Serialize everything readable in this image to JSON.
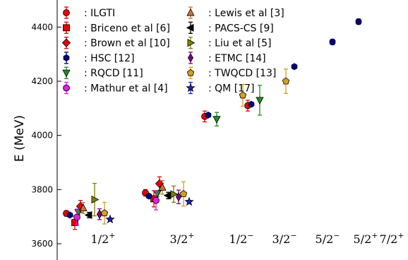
{
  "chart_data": {
    "type": "scatter",
    "ylabel": "E (MeV)",
    "ylim": [
      3540,
      4500
    ],
    "yticks": [
      3600,
      3800,
      4000,
      4200,
      4400
    ],
    "categories": [
      {
        "label": "1/2",
        "sup": "+"
      },
      {
        "label": "3/2",
        "sup": "+"
      },
      {
        "label": "1/2",
        "sup": "−"
      },
      {
        "label": "3/2",
        "sup": "−"
      },
      {
        "label": "5/2",
        "sup": "−"
      },
      {
        "label": "5/2",
        "sup": "+"
      },
      {
        "label": "7/2",
        "sup": "+"
      }
    ],
    "legend_position": "top-left",
    "series": [
      {
        "name": ": ILGTI",
        "marker": "circle",
        "color": "#e8000b",
        "errcolor": "#e8000b",
        "points": [
          {
            "x": 1,
            "y": 3712,
            "err": 10
          },
          {
            "x": 2,
            "y": 3788,
            "err": 12
          },
          {
            "x": 3,
            "y": 4070,
            "err": 20
          },
          {
            "x": 4,
            "y": 4110,
            "err": 20
          }
        ]
      },
      {
        "name": ": Briceno et al [6]",
        "marker": "square",
        "color": "#e8000b",
        "errcolor": "#e8000b",
        "points": [
          {
            "x": 1,
            "y": 3678,
            "err": 25
          },
          {
            "x": 2,
            "y": 3766,
            "err": 30
          }
        ]
      },
      {
        "name": ": Brown et al [10]",
        "marker": "diamond",
        "color": "#e8000b",
        "errcolor": "#e8000b",
        "points": [
          {
            "x": 1,
            "y": 3738,
            "err": 22
          },
          {
            "x": 2,
            "y": 3822,
            "err": 25
          }
        ]
      },
      {
        "name": ": HSC [12]",
        "marker": "hexagon",
        "color": "#000080",
        "errcolor": "#000080",
        "points": [
          {
            "x": 1,
            "y": 3706,
            "err": 6
          },
          {
            "x": 2,
            "y": 3776,
            "err": 6
          },
          {
            "x": 3,
            "y": 4075,
            "err": 6
          },
          {
            "x": 4,
            "y": 4115,
            "err": 7
          },
          {
            "x": 5,
            "y": 4254,
            "err": 8
          },
          {
            "x": 6,
            "y": 4345,
            "err": 10
          },
          {
            "x": 7,
            "y": 4420,
            "err": 10
          }
        ]
      },
      {
        "name": ": RQCD [11]",
        "marker": "triangle-down",
        "color": "#1f8f1f",
        "errcolor": "#1f8f1f",
        "points": [
          {
            "x": 1,
            "y": 3716,
            "err": 10
          },
          {
            "x": 2,
            "y": 3785,
            "err": 12
          },
          {
            "x": 3,
            "y": 4060,
            "err": 25
          },
          {
            "x": 4,
            "y": 4130,
            "err": 55
          }
        ]
      },
      {
        "name": ": Mathur et al [4]",
        "marker": "circle",
        "color": "#e020e0",
        "errcolor": "#e020e0",
        "points": [
          {
            "x": 1,
            "y": 3698,
            "err": 30
          },
          {
            "x": 2,
            "y": 3760,
            "err": 35
          }
        ]
      },
      {
        "name": ": Lewis et al [3]",
        "marker": "triangle-up",
        "color": "#c87533",
        "errcolor": "#c87533",
        "points": [
          {
            "x": 1,
            "y": 3732,
            "err": 20
          },
          {
            "x": 2,
            "y": 3808,
            "err": 25
          }
        ]
      },
      {
        "name": ": PACS-CS [9]",
        "marker": "triangle-left",
        "color": "#000000",
        "errcolor": "#000000",
        "points": [
          {
            "x": 1,
            "y": 3706,
            "err": 10
          },
          {
            "x": 2,
            "y": 3778,
            "err": 12
          }
        ]
      },
      {
        "name": ": Liu et al [5]",
        "marker": "triangle-right",
        "color": "#808000",
        "errcolor": "#808000",
        "points": [
          {
            "x": 1,
            "y": 3763,
            "err": 60
          },
          {
            "x": 2,
            "y": 3783,
            "err": 30
          }
        ]
      },
      {
        "name": ": ETMC [14]",
        "marker": "thin-diamond",
        "color": "#800080",
        "errcolor": "#800080",
        "points": [
          {
            "x": 1,
            "y": 3709,
            "err": 20
          },
          {
            "x": 2,
            "y": 3773,
            "err": 25
          }
        ]
      },
      {
        "name": ": TWQCD [13]",
        "marker": "pentagon",
        "color": "#d4a020",
        "errcolor": "#d4a020",
        "points": [
          {
            "x": 1,
            "y": 3713,
            "err": 40
          },
          {
            "x": 2,
            "y": 3784,
            "err": 45
          },
          {
            "x": 3,
            "y": 4148,
            "err": 40
          },
          {
            "x": 4,
            "y": 4200,
            "err": 45
          }
        ]
      },
      {
        "name": ": QM [17]",
        "marker": "star",
        "color": "#2020c0",
        "errcolor": "#2020c0",
        "points": [
          {
            "x": 1,
            "y": 3690,
            "err": 5
          },
          {
            "x": 2,
            "y": 3755,
            "err": 5
          }
        ]
      }
    ]
  }
}
